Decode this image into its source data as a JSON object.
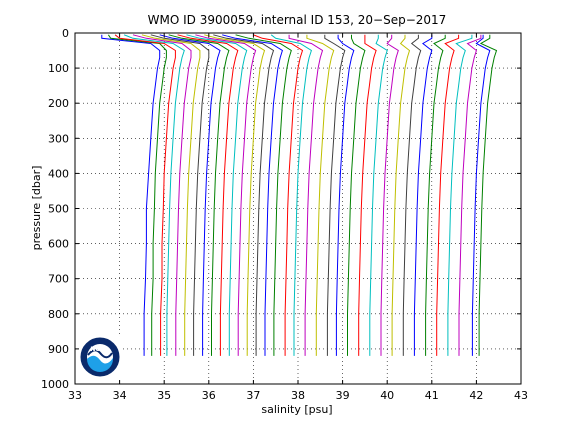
{
  "chart_data": {
    "type": "line",
    "title": "WMO ID 3900059, internal ID 153, 20−Sep−2017",
    "xlabel": "salinity [psu]",
    "ylabel": "pressure [dbar]",
    "xlim": [
      33,
      43
    ],
    "ylim": [
      0,
      1000
    ],
    "y_inverted": true,
    "xticks": [
      "33",
      "34",
      "35",
      "36",
      "37",
      "38",
      "39",
      "40",
      "41",
      "42",
      "43"
    ],
    "yticks": [
      "0",
      "100",
      "200",
      "300",
      "400",
      "500",
      "600",
      "700",
      "800",
      "900",
      "1000"
    ],
    "grid": "dotted",
    "note": "waterfall plot: successive salinity profiles offset to the right",
    "profile_pressures": [
      5,
      15,
      30,
      50,
      70,
      100,
      150,
      200,
      300,
      400,
      500,
      600,
      700,
      800,
      860,
      920
    ],
    "series": [
      {
        "color": "#0000ff",
        "values": [
          33.6,
          33.6,
          34.7,
          34.9,
          34.9,
          34.85,
          34.8,
          34.75,
          34.7,
          34.65,
          34.6,
          34.6,
          34.58,
          34.55,
          34.55,
          34.55
        ]
      },
      {
        "color": "#008000",
        "values": [
          33.75,
          33.8,
          34.9,
          35.05,
          35.05,
          35.0,
          34.95,
          34.9,
          34.85,
          34.8,
          34.78,
          34.75,
          34.75,
          34.72,
          34.72,
          34.72
        ]
      },
      {
        "color": "#ff0000",
        "values": [
          33.9,
          34.0,
          35.0,
          35.25,
          35.25,
          35.2,
          35.15,
          35.1,
          35.05,
          35.0,
          34.98,
          34.95,
          34.95,
          34.92,
          34.92,
          34.92
        ]
      },
      {
        "color": "#00bfbf",
        "values": [
          34.1,
          34.3,
          35.2,
          35.45,
          35.4,
          35.35,
          35.3,
          35.25,
          35.2,
          35.15,
          35.12,
          35.1,
          35.08,
          35.06,
          35.06,
          35.06
        ]
      },
      {
        "color": "#bf00bf",
        "values": [
          34.3,
          34.6,
          35.4,
          35.6,
          35.6,
          35.55,
          35.5,
          35.45,
          35.4,
          35.35,
          35.32,
          35.3,
          35.28,
          35.26,
          35.26,
          35.26
        ]
      },
      {
        "color": "#bfbf00",
        "values": [
          34.5,
          34.8,
          35.6,
          35.8,
          35.8,
          35.75,
          35.7,
          35.65,
          35.6,
          35.55,
          35.52,
          35.5,
          35.48,
          35.46,
          35.46,
          35.46
        ]
      },
      {
        "color": "#404040",
        "values": [
          34.7,
          35.0,
          35.8,
          36.0,
          36.0,
          35.95,
          35.9,
          35.85,
          35.8,
          35.75,
          35.72,
          35.7,
          35.68,
          35.66,
          35.66,
          35.66
        ]
      },
      {
        "color": "#0000ff",
        "values": [
          34.9,
          35.2,
          36.0,
          36.25,
          36.2,
          36.15,
          36.1,
          36.05,
          36.0,
          35.95,
          35.92,
          35.9,
          35.88,
          35.86,
          35.86,
          35.86
        ]
      },
      {
        "color": "#008000",
        "values": [
          35.1,
          35.4,
          36.2,
          36.45,
          36.4,
          36.35,
          36.3,
          36.25,
          36.2,
          36.15,
          36.12,
          36.1,
          36.08,
          36.06,
          36.06,
          36.06
        ]
      },
      {
        "color": "#ff0000",
        "values": [
          35.3,
          35.6,
          36.4,
          36.65,
          36.6,
          36.55,
          36.5,
          36.45,
          36.4,
          36.35,
          36.32,
          36.3,
          36.28,
          36.26,
          36.26,
          36.26
        ]
      },
      {
        "color": "#00bfbf",
        "values": [
          35.5,
          35.8,
          36.6,
          36.85,
          36.8,
          36.75,
          36.7,
          36.65,
          36.6,
          36.55,
          36.52,
          36.5,
          36.48,
          36.46,
          36.46,
          36.46
        ]
      },
      {
        "color": "#bf00bf",
        "values": [
          35.7,
          36.0,
          36.8,
          37.05,
          37.0,
          36.95,
          36.9,
          36.85,
          36.8,
          36.75,
          36.72,
          36.7,
          36.68,
          36.66,
          36.66,
          36.66
        ]
      },
      {
        "color": "#bfbf00",
        "values": [
          35.9,
          36.2,
          37.0,
          37.25,
          37.2,
          37.15,
          37.1,
          37.05,
          37.0,
          36.95,
          36.92,
          36.9,
          36.88,
          36.86,
          36.86,
          36.86
        ]
      },
      {
        "color": "#404040",
        "values": [
          36.1,
          36.4,
          37.2,
          37.45,
          37.4,
          37.35,
          37.3,
          37.25,
          37.2,
          37.15,
          37.12,
          37.1,
          37.08,
          37.06,
          37.06,
          37.06
        ]
      },
      {
        "color": "#0000ff",
        "values": [
          36.3,
          36.6,
          37.4,
          37.65,
          37.6,
          37.55,
          37.5,
          37.45,
          37.4,
          37.35,
          37.32,
          37.3,
          37.28,
          37.26,
          37.26,
          37.26
        ]
      },
      {
        "color": "#008000",
        "values": [
          36.6,
          36.9,
          37.6,
          37.85,
          37.8,
          37.75,
          37.7,
          37.65,
          37.6,
          37.55,
          37.52,
          37.5,
          37.48,
          37.46,
          37.46,
          37.46
        ]
      },
      {
        "color": "#ff0000",
        "values": [
          37.0,
          37.2,
          37.85,
          38.1,
          38.05,
          38.0,
          37.95,
          37.9,
          37.85,
          37.8,
          37.77,
          37.75,
          37.73,
          37.71,
          37.71,
          37.71
        ]
      },
      {
        "color": "#00bfbf",
        "values": [
          37.4,
          37.5,
          38.05,
          38.3,
          38.25,
          38.2,
          38.15,
          38.1,
          38.05,
          38.0,
          37.97,
          37.95,
          37.93,
          37.91,
          37.91,
          37.91
        ]
      },
      {
        "color": "#bf00bf",
        "values": [
          37.8,
          37.8,
          38.3,
          38.55,
          38.5,
          38.45,
          38.4,
          38.35,
          38.3,
          38.25,
          38.22,
          38.2,
          38.18,
          38.16,
          38.16,
          38.16
        ]
      },
      {
        "color": "#bfbf00",
        "values": [
          38.2,
          38.2,
          38.55,
          38.8,
          38.75,
          38.7,
          38.65,
          38.6,
          38.55,
          38.5,
          38.47,
          38.45,
          38.43,
          38.41,
          38.41,
          38.41
        ]
      },
      {
        "color": "#404040",
        "values": [
          38.6,
          38.6,
          38.8,
          39.05,
          39.0,
          38.95,
          38.9,
          38.85,
          38.8,
          38.75,
          38.72,
          38.7,
          38.68,
          38.66,
          38.66,
          38.66
        ]
      },
      {
        "color": "#0000ff",
        "values": [
          38.9,
          38.9,
          39.0,
          39.25,
          39.2,
          39.15,
          39.1,
          39.05,
          39.0,
          38.95,
          38.92,
          38.9,
          38.88,
          38.86,
          38.86,
          38.86
        ]
      },
      {
        "color": "#008000",
        "values": [
          39.2,
          39.2,
          39.25,
          39.5,
          39.45,
          39.4,
          39.35,
          39.3,
          39.25,
          39.2,
          39.17,
          39.15,
          39.13,
          39.11,
          39.11,
          39.11
        ]
      },
      {
        "color": "#ff0000",
        "values": [
          39.5,
          39.5,
          39.5,
          39.75,
          39.7,
          39.65,
          39.6,
          39.55,
          39.5,
          39.45,
          39.42,
          39.4,
          39.38,
          39.36,
          39.36,
          39.36
        ]
      },
      {
        "color": "#00bfbf",
        "values": [
          39.8,
          39.8,
          39.75,
          40.0,
          39.95,
          39.9,
          39.85,
          39.8,
          39.75,
          39.7,
          39.67,
          39.65,
          39.63,
          39.61,
          39.61,
          39.61
        ]
      },
      {
        "color": "#bf00bf",
        "values": [
          40.1,
          40.1,
          40.0,
          40.25,
          40.2,
          40.15,
          40.1,
          40.05,
          40.0,
          39.95,
          39.92,
          39.9,
          39.88,
          39.86,
          39.86,
          39.86
        ]
      },
      {
        "color": "#bfbf00",
        "values": [
          40.4,
          40.4,
          40.3,
          40.5,
          40.45,
          40.4,
          40.35,
          40.3,
          40.25,
          40.2,
          40.17,
          40.15,
          40.13,
          40.11,
          40.11,
          40.11
        ]
      },
      {
        "color": "#404040",
        "values": [
          40.7,
          40.7,
          40.55,
          40.75,
          40.7,
          40.65,
          40.6,
          40.55,
          40.5,
          40.45,
          40.42,
          40.4,
          40.38,
          40.36,
          40.36,
          40.36
        ]
      },
      {
        "color": "#0000ff",
        "values": [
          41.0,
          41.0,
          40.8,
          41.0,
          40.95,
          40.9,
          40.85,
          40.8,
          40.75,
          40.7,
          40.67,
          40.65,
          40.63,
          40.61,
          40.61,
          40.61
        ]
      },
      {
        "color": "#008000",
        "values": [
          41.3,
          41.3,
          41.05,
          41.25,
          41.2,
          41.15,
          41.1,
          41.05,
          41.0,
          40.95,
          40.92,
          40.9,
          40.88,
          40.86,
          40.86,
          40.86
        ]
      },
      {
        "color": "#ff0000",
        "values": [
          41.6,
          41.6,
          41.3,
          41.5,
          41.45,
          41.4,
          41.35,
          41.3,
          41.25,
          41.2,
          41.17,
          41.15,
          41.13,
          41.11,
          41.11,
          41.11
        ]
      },
      {
        "color": "#00bfbf",
        "values": [
          41.9,
          41.9,
          41.55,
          41.75,
          41.7,
          41.65,
          41.6,
          41.55,
          41.5,
          41.45,
          41.42,
          41.4,
          41.38,
          41.36,
          41.36,
          41.36
        ]
      },
      {
        "color": "#bf00bf",
        "values": [
          42.1,
          42.1,
          41.8,
          42.0,
          41.95,
          41.9,
          41.85,
          41.8,
          41.75,
          41.7,
          41.67,
          41.65,
          41.63,
          41.61,
          41.61,
          41.61
        ]
      },
      {
        "color": "#0000ff",
        "values": [
          42.15,
          42.15,
          42.0,
          42.3,
          42.25,
          42.2,
          42.15,
          42.1,
          42.05,
          42.0,
          41.97,
          41.95,
          41.93,
          41.91,
          41.91,
          41.91
        ]
      },
      {
        "color": "#008000",
        "values": [
          42.3,
          42.3,
          42.1,
          42.45,
          42.4,
          42.35,
          42.3,
          42.25,
          42.2,
          42.15,
          42.12,
          42.1,
          42.08,
          42.06,
          42.06,
          42.06
        ]
      }
    ]
  },
  "logo": {
    "text": "NOAA",
    "ring_color": "#ffffff",
    "sky_color": "#0a2a6b",
    "sea_color": "#1ea0e8"
  }
}
